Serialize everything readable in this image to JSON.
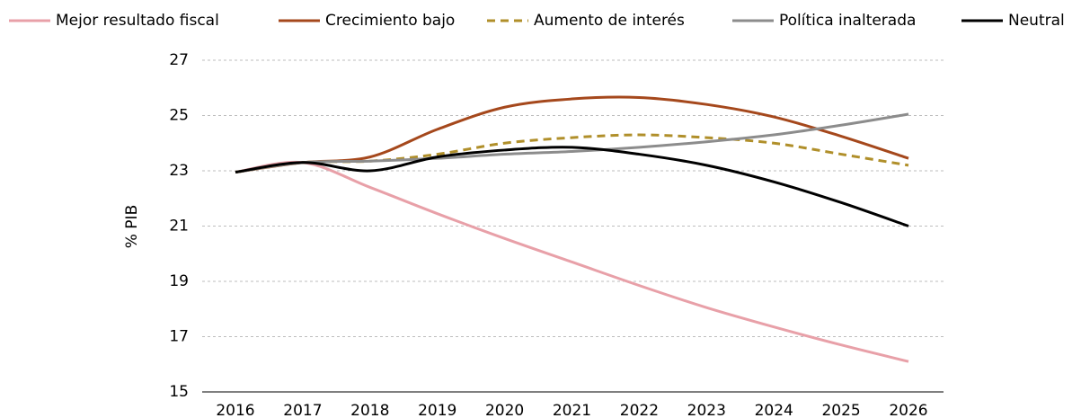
{
  "chart_data": {
    "type": "line",
    "y_label": "% PIB",
    "categories": [
      "2016",
      "2017",
      "2018",
      "2019",
      "2020",
      "2021",
      "2022",
      "2023",
      "2024",
      "2025",
      "2026"
    ],
    "series": [
      {
        "name": "Mejor resultado fiscal",
        "color": "#e8a0a8",
        "values": [
          22.95,
          23.3,
          22.4,
          21.45,
          20.55,
          19.7,
          18.85,
          18.05,
          17.35,
          16.7,
          16.1
        ]
      },
      {
        "name": "Crecimiento bajo",
        "color": "#a5481c",
        "values": [
          22.95,
          23.3,
          23.5,
          24.5,
          25.3,
          25.6,
          25.65,
          25.4,
          24.95,
          24.25,
          23.45
        ]
      },
      {
        "name": "Aumento de interés",
        "color": "#b08f2a",
        "dashed": true,
        "values": [
          22.95,
          23.3,
          23.35,
          23.6,
          24.0,
          24.2,
          24.3,
          24.2,
          24.0,
          23.6,
          23.2
        ]
      },
      {
        "name": "Política inalterada",
        "color": "#8c8c8c",
        "values": [
          22.95,
          23.3,
          23.35,
          23.45,
          23.6,
          23.7,
          23.85,
          24.05,
          24.3,
          24.65,
          25.05
        ]
      },
      {
        "name": "Neutral",
        "color": "#000000",
        "values": [
          22.95,
          23.3,
          23.0,
          23.5,
          23.75,
          23.85,
          23.6,
          23.2,
          22.6,
          21.85,
          21.0
        ]
      }
    ],
    "ylim": [
      15,
      27
    ],
    "yticks": [
      15,
      17,
      19,
      21,
      23,
      25,
      27
    ],
    "grid": true,
    "legend": "top"
  }
}
